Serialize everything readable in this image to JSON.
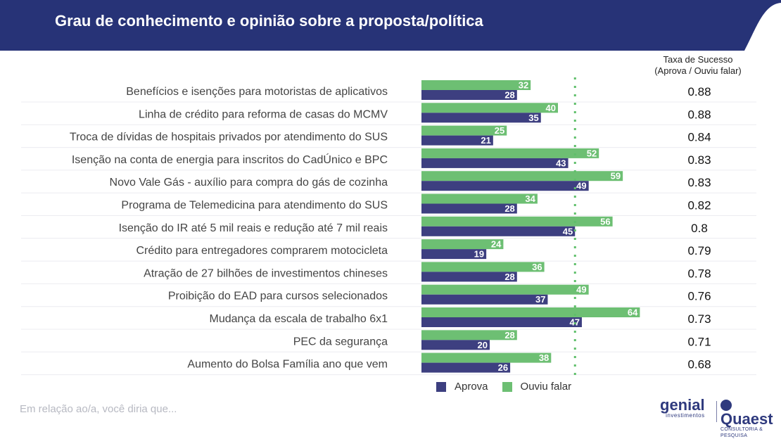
{
  "header": {
    "title": "Grau de conhecimento e opinião sobre a proposta/política",
    "bg_color": "#273377"
  },
  "rate_column": {
    "title_line1": "Taxa de Sucesso",
    "title_line2": "(Aprova / Ouviu falar)"
  },
  "footer": {
    "note": "Em relação ao/a, você diria que...",
    "logo_genial": "genial",
    "logo_genial_sub": "investimentos",
    "logo_quaest": "Quaest",
    "logo_quaest_sub": "CONSULTORIA & PESQUISA"
  },
  "chart_data": {
    "type": "bar",
    "orientation": "horizontal",
    "categories": [
      "Benefícios e isenções para motoristas de aplicativos",
      "Linha de crédito para reforma de casas do MCMV",
      "Troca de dívidas de hospitais privados por atendimento do SUS",
      "Isenção na conta de energia para inscritos do CadÚnico e BPC",
      "Novo Vale Gás - auxílio para compra do gás de cozinha",
      "Programa de Telemedicina para atendimento do SUS",
      "Isenção do IR até 5 mil reais e redução até 7 mil reais",
      "Crédito para entregadores comprarem motocicleta",
      "Atração de 27 bilhões de investimentos chineses",
      "Proibição do EAD para cursos selecionados",
      "Mudança da escala de trabalho 6x1",
      "PEC da segurança",
      "Aumento do Bolsa Família ano que vem"
    ],
    "series": [
      {
        "name": "Ouviu falar",
        "color": "#6dbf73",
        "values": [
          32,
          40,
          25,
          52,
          59,
          34,
          56,
          24,
          36,
          49,
          64,
          28,
          38
        ]
      },
      {
        "name": "Aprova",
        "color": "#3d3f80",
        "values": [
          28,
          35,
          21,
          43,
          49,
          28,
          45,
          19,
          28,
          37,
          47,
          20,
          26
        ]
      }
    ],
    "success_rate": [
      "0.88",
      "0.88",
      "0.84",
      "0.83",
      "0.83",
      "0.82",
      "0.8",
      "0.79",
      "0.78",
      "0.76",
      "0.73",
      "0.71",
      "0.68"
    ],
    "reference_line_value": 45,
    "legend": [
      {
        "name": "Aprova",
        "color": "#3d3f80"
      },
      {
        "name": "Ouviu falar",
        "color": "#6dbf73"
      }
    ],
    "legend_position": "bottom",
    "grid": false
  }
}
